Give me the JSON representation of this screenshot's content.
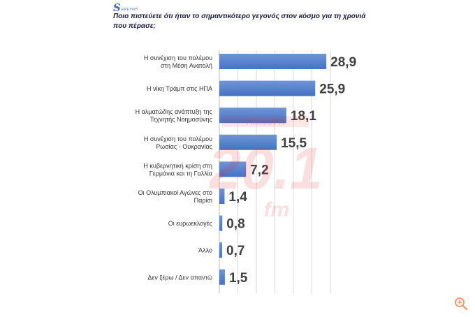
{
  "header": {
    "logo_text": "ΕΡΕΥΝΗ",
    "question": "Ποιο πιστεύετε ότι ήταν το σημαντικότερο γεγονός στον κόσμο για τη χρονιά που πέρασε;"
  },
  "watermark": {
    "number": "20.1",
    "suffix": "fm",
    "top_text": "ΠΑΝΟΡΑ"
  },
  "colors": {
    "bar": "#4472c4",
    "bar_light": "#6f95d6",
    "label": "#333333",
    "value": "#404040",
    "grid": "#d9d9d9",
    "watermark": "#e8383c"
  },
  "icons": {
    "zoom": "zoom-in-icon"
  },
  "chart_data": {
    "type": "bar",
    "orientation": "horizontal",
    "categories": [
      [
        "Η συνέχιση του πολέμου",
        "στη Μέση Ανατολή"
      ],
      [
        "Η νίκη Τράμπ στις ΗΠΑ"
      ],
      [
        "Η αλματώδης ανάπτυξη της",
        "Τεχνητής Νοημοσύνης"
      ],
      [
        "Η συνέχιση του πολέμου",
        "Ρωσίας - Ουκρανίας"
      ],
      [
        "Η κυβερνητική κρίση στη",
        "Γερμάνια και τη Γαλλία"
      ],
      [
        "Οι Ολυμπιακοί Αγώνες στο",
        "Παρίσι"
      ],
      [
        "Οι ευρωεκλογές"
      ],
      [
        "Άλλο"
      ],
      [
        "Δεν ξέρω / Δεν απαντώ"
      ]
    ],
    "values": [
      28.9,
      25.9,
      18.1,
      15.5,
      7.2,
      1.4,
      0.8,
      0.7,
      1.5
    ],
    "value_labels": [
      "28,9",
      "25,9",
      "18,1",
      "15,5",
      "7,2",
      "1,4",
      "0,8",
      "0,7",
      "1,5"
    ],
    "xlim": [
      0,
      30
    ],
    "grid": true,
    "legend": "none"
  }
}
